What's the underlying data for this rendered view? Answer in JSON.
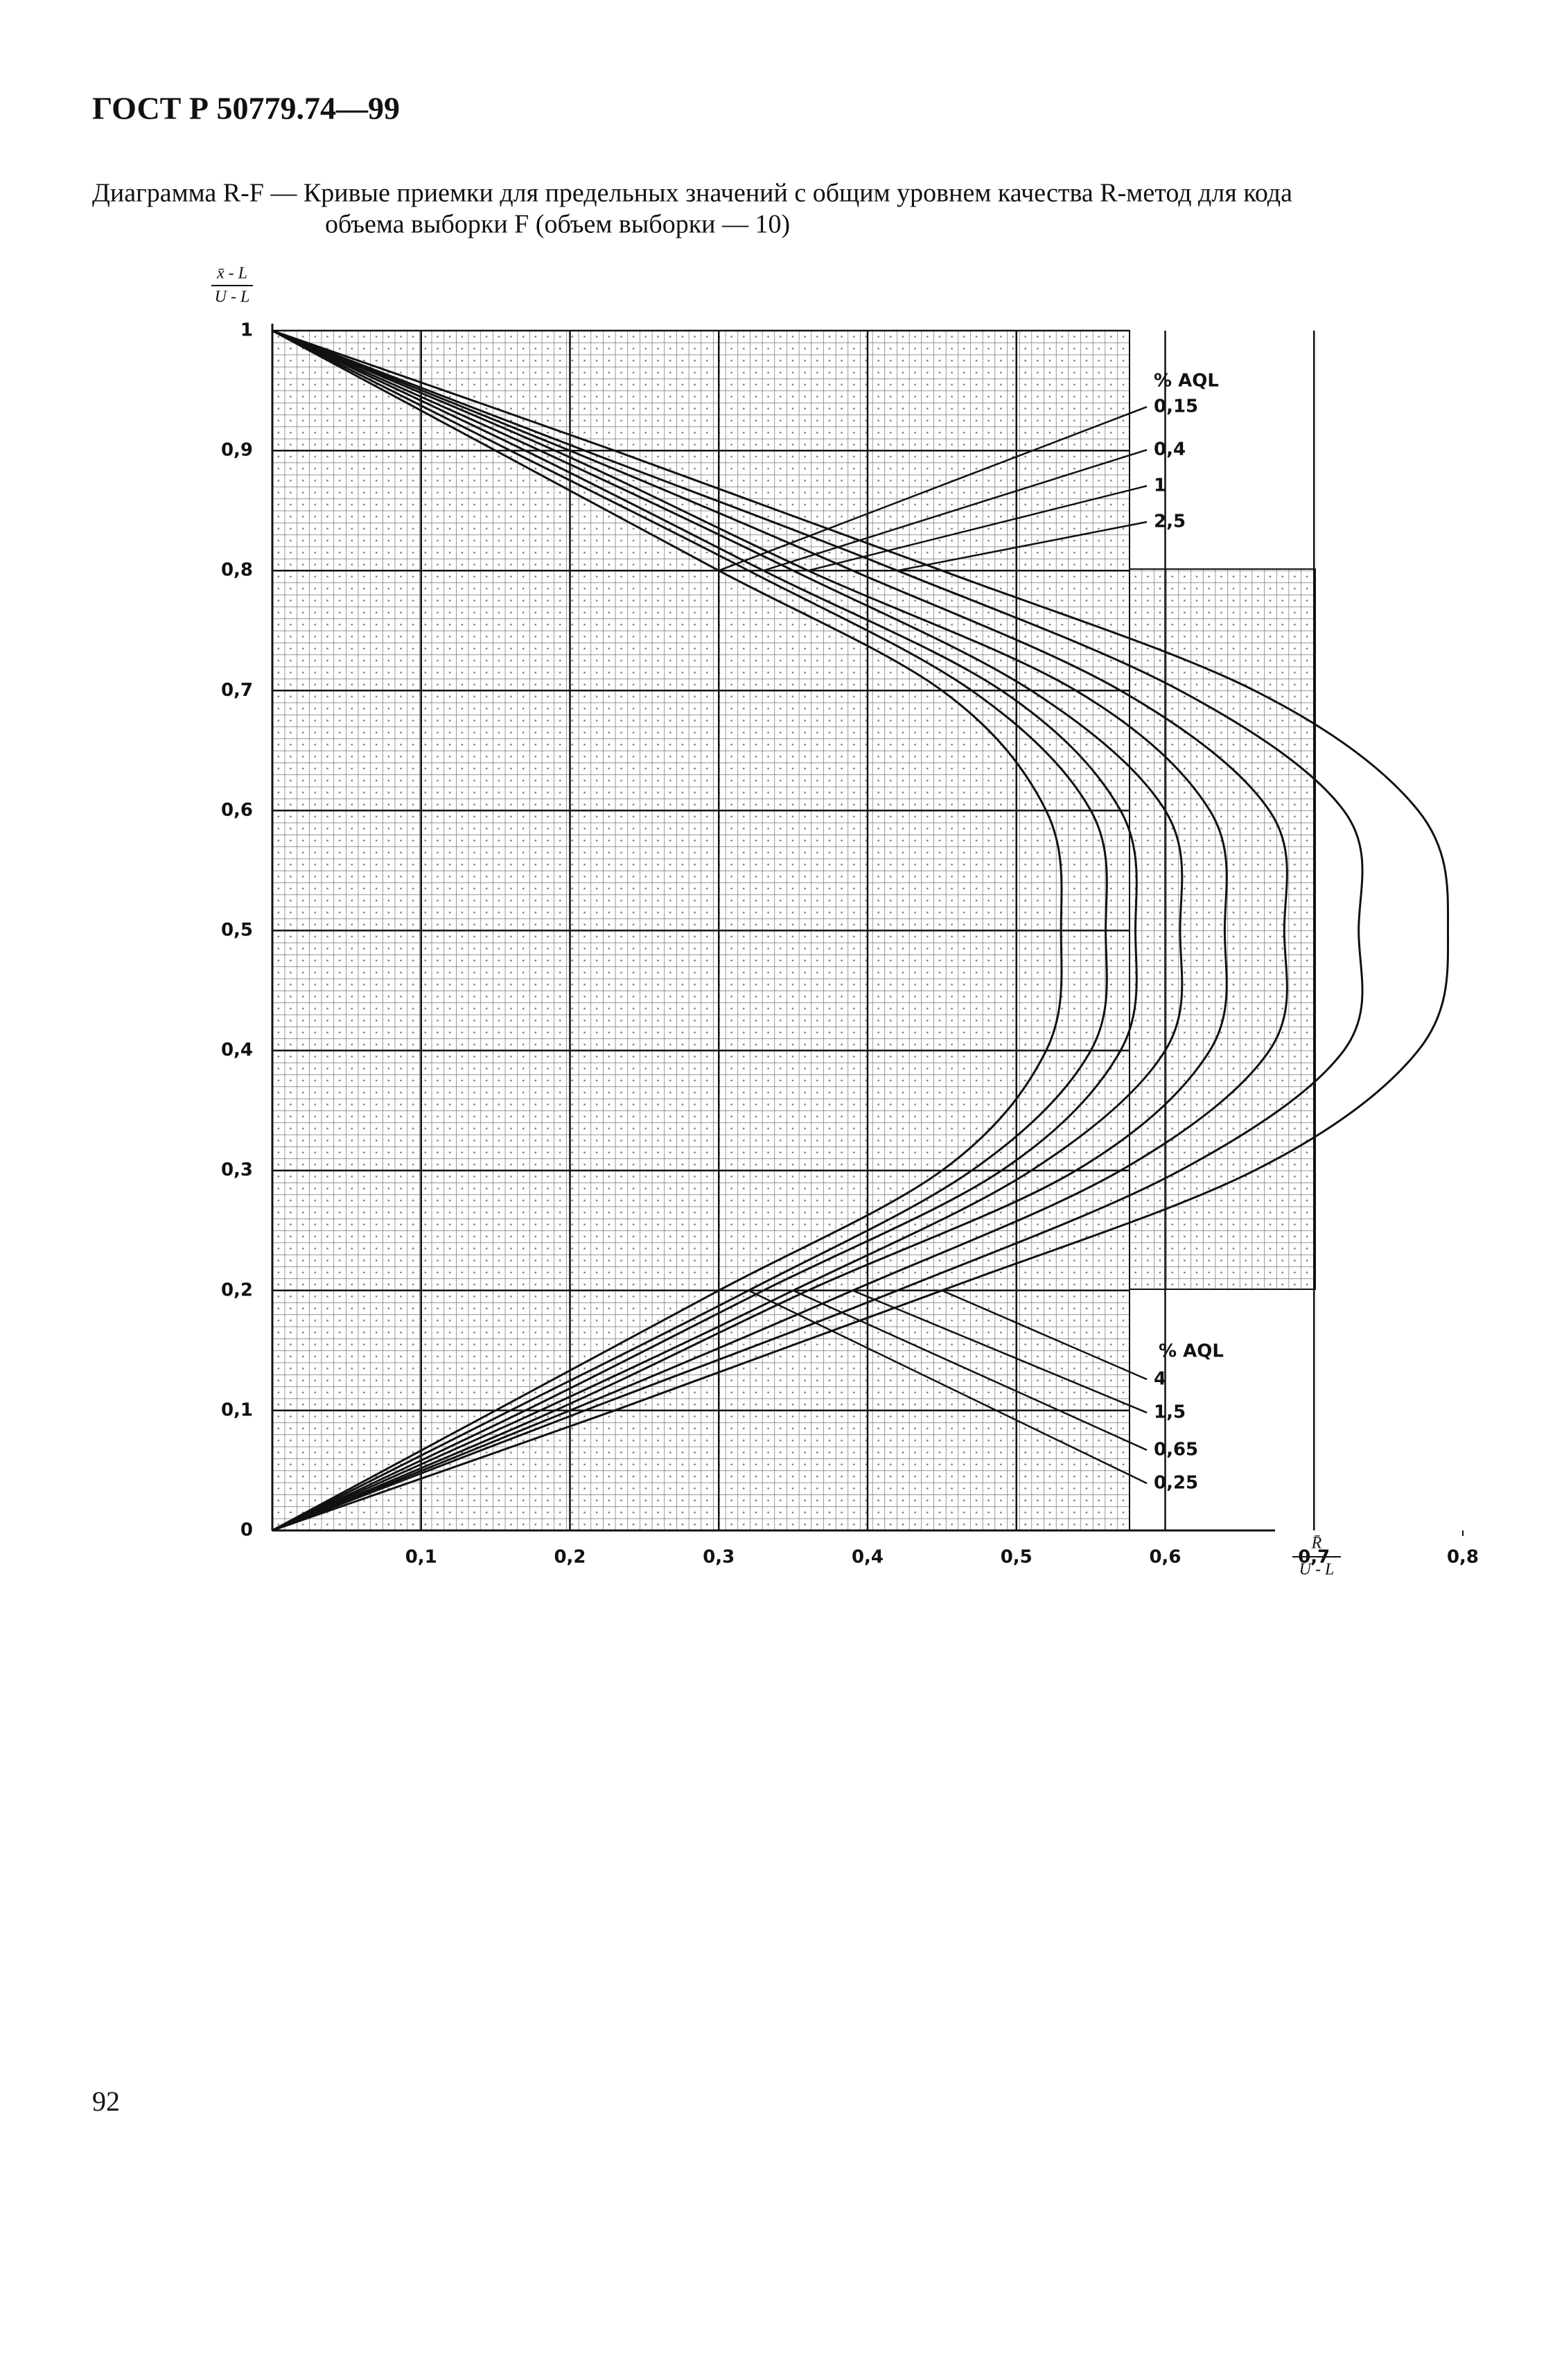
{
  "header": "ГОСТ Р 50779.74—99",
  "page_number": "92",
  "chart_data": {
    "type": "line",
    "title_lines": [
      "Диаграмма R-F — Кривые приемки для предельных значений с общим уровнем качества R-метод для кода",
      "объема выборки F (объем выборки — 10)"
    ],
    "y_label": {
      "numerator": "x̄ - L",
      "denominator": "U - L"
    },
    "x_label": {
      "numerator": "R̄",
      "denominator": "U - L"
    },
    "legend_titles": [
      "% AQL",
      "% AQL"
    ],
    "xlim": [
      0,
      0.8
    ],
    "ylim": [
      0,
      1
    ],
    "xticks": [
      {
        "value": 0.1,
        "label": "0,1"
      },
      {
        "value": 0.2,
        "label": "0,2"
      },
      {
        "value": 0.3,
        "label": "0,3"
      },
      {
        "value": 0.4,
        "label": "0,4"
      },
      {
        "value": 0.5,
        "label": "0,5"
      },
      {
        "value": 0.6,
        "label": "0,6"
      },
      {
        "value": 0.7,
        "label": "0,7"
      },
      {
        "value": 0.8,
        "label": "0,8"
      }
    ],
    "yticks": [
      0,
      {
        "value": 0.1,
        "label": "0,1"
      },
      {
        "value": 0.2,
        "label": "0,2"
      },
      {
        "value": 0.3,
        "label": "0,3"
      },
      {
        "value": 0.4,
        "label": "0,4"
      },
      {
        "value": 0.5,
        "label": "0,5"
      },
      {
        "value": 0.6,
        "label": "0,6"
      },
      {
        "value": 0.7,
        "label": "0,7"
      },
      {
        "value": 0.8,
        "label": "0,8"
      },
      {
        "value": 0.9,
        "label": "0,9"
      },
      1
    ],
    "y": [
      0,
      0.1,
      0.2,
      0.3,
      0.4,
      0.5,
      0.6,
      0.7,
      0.8,
      0.9,
      1
    ],
    "series": [
      {
        "name": "0,15",
        "color": "#111",
        "x": [
          0,
          0.15,
          0.3,
          0.45,
          0.52,
          0.53,
          0.52,
          0.45,
          0.3,
          0.15,
          0
        ]
      },
      {
        "name": "0,25",
        "color": "#111",
        "x": [
          0,
          0.16,
          0.32,
          0.47,
          0.55,
          0.56,
          0.55,
          0.47,
          0.32,
          0.16,
          0
        ]
      },
      {
        "name": "0,4",
        "color": "#111",
        "x": [
          0,
          0.17,
          0.33,
          0.49,
          0.57,
          0.58,
          0.57,
          0.49,
          0.33,
          0.17,
          0
        ]
      },
      {
        "name": "0,65",
        "color": "#111",
        "x": [
          0,
          0.18,
          0.35,
          0.51,
          0.6,
          0.61,
          0.6,
          0.51,
          0.35,
          0.18,
          0
        ]
      },
      {
        "name": "1",
        "color": "#111",
        "x": [
          0,
          0.19,
          0.36,
          0.54,
          0.63,
          0.64,
          0.63,
          0.54,
          0.36,
          0.19,
          0
        ]
      },
      {
        "name": "1,5",
        "color": "#111",
        "x": [
          0,
          0.2,
          0.39,
          0.57,
          0.67,
          0.68,
          0.67,
          0.57,
          0.39,
          0.2,
          0
        ]
      },
      {
        "name": "2,5",
        "color": "#111",
        "x": [
          0,
          0.21,
          0.42,
          0.61,
          0.72,
          0.73,
          0.72,
          0.61,
          0.42,
          0.21,
          0
        ]
      },
      {
        "name": "4",
        "color": "#111",
        "x": [
          0,
          0.23,
          0.45,
          0.66,
          0.77,
          0.79,
          0.77,
          0.66,
          0.45,
          0.23,
          0
        ]
      }
    ]
  }
}
